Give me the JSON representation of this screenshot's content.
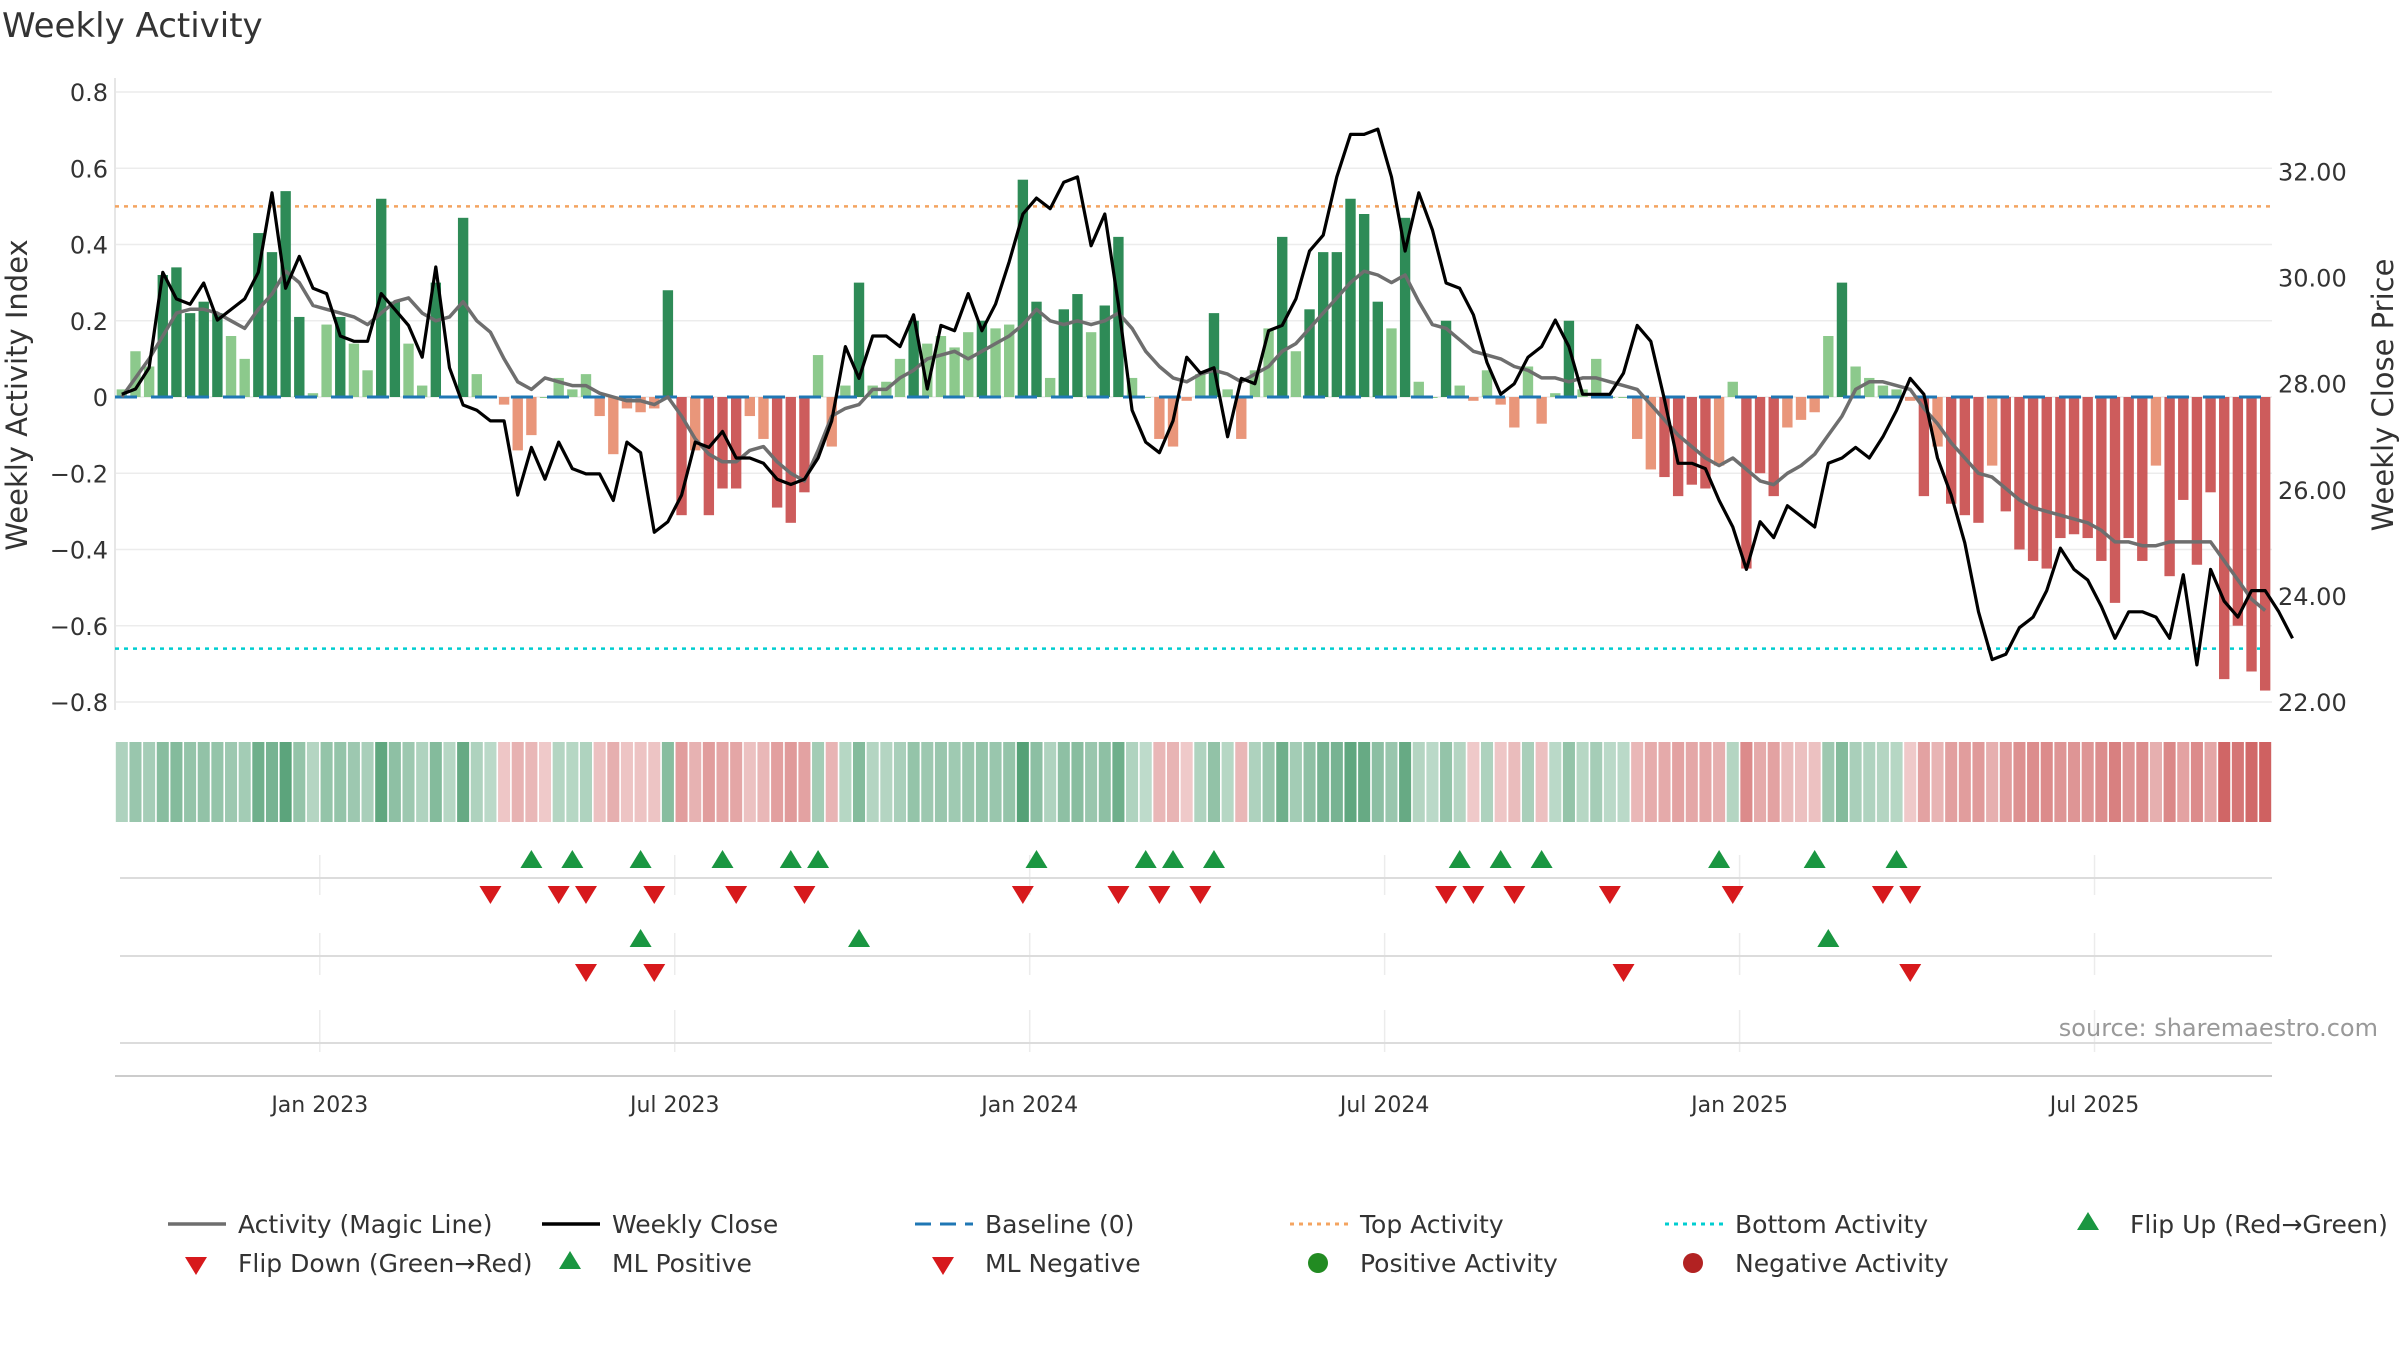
{
  "title": "Weekly Activity",
  "source": "source: sharemaestro.com",
  "colors": {
    "pos_strong": "#2e8b57",
    "pos_light": "#8cc98c",
    "neg_strong": "#cd5c5c",
    "neg_light": "#e9967a",
    "magic": "#6e6e6e",
    "close": "#000000",
    "baseline": "#1f77b4",
    "top": "#f4a460",
    "bottom": "#00ced1",
    "flip_up": "#1a9641",
    "flip_down": "#d7191c"
  },
  "chart_data": {
    "type": "bar",
    "title": "Weekly Activity",
    "ylabel_left": "Weekly Activity Index",
    "ylabel_right": "Weekly Close Price",
    "ylim_left": [
      -0.8,
      0.8
    ],
    "ylim_right": [
      22.0,
      33.5
    ],
    "left_ticks": [
      {
        "v": 0.8,
        "label": "0.8"
      },
      {
        "v": 0.6,
        "label": "0.6"
      },
      {
        "v": 0.4,
        "label": "0.4"
      },
      {
        "v": 0.2,
        "label": "0.2"
      },
      {
        "v": 0,
        "label": "0"
      },
      {
        "v": -0.2,
        "label": "−0.2"
      },
      {
        "v": -0.4,
        "label": "−0.4"
      },
      {
        "v": -0.6,
        "label": "−0.6"
      },
      {
        "v": -0.8,
        "label": "−0.8"
      }
    ],
    "right_ticks": [
      {
        "v": 32,
        "label": "32.00"
      },
      {
        "v": 30,
        "label": "30.00"
      },
      {
        "v": 28,
        "label": "28.00"
      },
      {
        "v": 26,
        "label": "26.00"
      },
      {
        "v": 24,
        "label": "24.00"
      },
      {
        "v": 22,
        "label": "22.00"
      }
    ],
    "x_ticks": [
      {
        "w": 15,
        "label": "Jan 2023"
      },
      {
        "w": 41,
        "label": "Jul 2023"
      },
      {
        "w": 67,
        "label": "Jan 2024"
      },
      {
        "w": 93,
        "label": "Jul 2024"
      },
      {
        "w": 119,
        "label": "Jan 2025"
      },
      {
        "w": 145,
        "label": "Jul 2025"
      }
    ],
    "top_activity": 0.5,
    "bottom_activity": -0.66,
    "weeks": 158,
    "activity": [
      0.02,
      0.12,
      0.08,
      0.32,
      0.34,
      0.22,
      0.25,
      0.22,
      0.16,
      0.1,
      0.43,
      0.38,
      0.54,
      0.21,
      0.01,
      0.19,
      0.21,
      0.14,
      0.07,
      0.52,
      0.25,
      0.14,
      0.03,
      0.3,
      0.0,
      0.47,
      0.06,
      0.0,
      -0.02,
      -0.14,
      -0.1,
      0.0,
      0.05,
      0.02,
      0.06,
      -0.05,
      -0.15,
      -0.03,
      -0.04,
      -0.03,
      0.28,
      -0.31,
      -0.14,
      -0.31,
      -0.24,
      -0.24,
      -0.05,
      -0.11,
      -0.29,
      -0.33,
      -0.25,
      0.11,
      -0.13,
      0.03,
      0.3,
      0.03,
      0.04,
      0.1,
      0.2,
      0.14,
      0.16,
      0.13,
      0.17,
      0.2,
      0.18,
      0.19,
      0.57,
      0.25,
      0.05,
      0.23,
      0.27,
      0.17,
      0.24,
      0.42,
      0.05,
      0.0,
      -0.11,
      -0.13,
      -0.01,
      0.06,
      0.22,
      0.02,
      -0.11,
      0.07,
      0.18,
      0.42,
      0.12,
      0.23,
      0.38,
      0.38,
      0.52,
      0.48,
      0.25,
      0.18,
      0.47,
      0.04,
      0.0,
      0.2,
      0.03,
      -0.01,
      0.07,
      -0.02,
      -0.08,
      0.08,
      -0.07,
      0.01,
      0.2,
      0.02,
      0.1,
      0.0,
      0.0,
      -0.11,
      -0.19,
      -0.21,
      -0.26,
      -0.23,
      -0.24,
      -0.18,
      0.04,
      -0.45,
      -0.2,
      -0.26,
      -0.08,
      -0.06,
      -0.04,
      0.16,
      0.3,
      0.08,
      0.05,
      0.03,
      0.02,
      -0.01,
      -0.26,
      -0.13,
      -0.28,
      -0.31,
      -0.33,
      -0.18,
      -0.3,
      -0.4,
      -0.43,
      -0.45,
      -0.37,
      -0.36,
      -0.37,
      -0.43,
      -0.54,
      -0.37,
      -0.43,
      -0.18,
      -0.47,
      -0.27,
      -0.44,
      -0.25,
      -0.74,
      -0.6,
      -0.72,
      -0.77
    ],
    "magic_line": [
      0.0,
      0.05,
      0.1,
      0.16,
      0.22,
      0.23,
      0.23,
      0.22,
      0.2,
      0.18,
      0.23,
      0.27,
      0.33,
      0.3,
      0.24,
      0.23,
      0.22,
      0.21,
      0.19,
      0.22,
      0.25,
      0.26,
      0.22,
      0.2,
      0.21,
      0.25,
      0.2,
      0.17,
      0.1,
      0.04,
      0.02,
      0.05,
      0.04,
      0.03,
      0.03,
      0.01,
      0.0,
      -0.01,
      -0.01,
      -0.02,
      0.0,
      -0.05,
      -0.11,
      -0.15,
      -0.17,
      -0.17,
      -0.14,
      -0.13,
      -0.17,
      -0.2,
      -0.22,
      -0.14,
      -0.05,
      -0.03,
      -0.02,
      0.02,
      0.02,
      0.05,
      0.07,
      0.1,
      0.11,
      0.12,
      0.1,
      0.12,
      0.14,
      0.16,
      0.19,
      0.23,
      0.2,
      0.19,
      0.2,
      0.19,
      0.2,
      0.22,
      0.18,
      0.12,
      0.08,
      0.05,
      0.04,
      0.06,
      0.07,
      0.06,
      0.04,
      0.06,
      0.08,
      0.12,
      0.14,
      0.18,
      0.22,
      0.26,
      0.3,
      0.33,
      0.32,
      0.3,
      0.32,
      0.25,
      0.19,
      0.18,
      0.15,
      0.12,
      0.11,
      0.1,
      0.08,
      0.07,
      0.05,
      0.05,
      0.04,
      0.05,
      0.05,
      0.04,
      0.03,
      0.02,
      -0.02,
      -0.06,
      -0.1,
      -0.13,
      -0.16,
      -0.18,
      -0.16,
      -0.19,
      -0.22,
      -0.23,
      -0.2,
      -0.18,
      -0.15,
      -0.1,
      -0.05,
      0.02,
      0.04,
      0.04,
      0.03,
      0.02,
      -0.03,
      -0.07,
      -0.12,
      -0.16,
      -0.2,
      -0.21,
      -0.24,
      -0.27,
      -0.29,
      -0.3,
      -0.31,
      -0.32,
      -0.33,
      -0.35,
      -0.38,
      -0.38,
      -0.39,
      -0.39,
      -0.38,
      -0.38,
      -0.38,
      -0.38,
      -0.43,
      -0.48,
      -0.53,
      -0.56
    ],
    "weekly_close": [
      27.8,
      27.9,
      28.3,
      30.1,
      29.6,
      29.5,
      29.9,
      29.2,
      29.4,
      29.6,
      30.1,
      31.6,
      29.8,
      30.4,
      29.8,
      29.7,
      28.9,
      28.8,
      28.8,
      29.7,
      29.4,
      29.1,
      28.5,
      30.2,
      28.3,
      27.6,
      27.5,
      27.3,
      27.3,
      25.9,
      26.8,
      26.2,
      26.9,
      26.4,
      26.3,
      26.3,
      25.8,
      26.9,
      26.7,
      25.2,
      25.4,
      25.9,
      26.9,
      26.8,
      27.1,
      26.6,
      26.6,
      26.5,
      26.2,
      26.1,
      26.2,
      26.6,
      27.3,
      28.7,
      28.1,
      28.9,
      28.9,
      28.7,
      29.3,
      27.9,
      29.1,
      29.0,
      29.7,
      29.0,
      29.5,
      30.3,
      31.2,
      31.5,
      31.3,
      31.8,
      31.9,
      30.6,
      31.2,
      29.5,
      27.5,
      26.9,
      26.7,
      27.3,
      28.5,
      28.2,
      28.3,
      27.0,
      28.1,
      28.0,
      29.0,
      29.1,
      29.6,
      30.5,
      30.8,
      31.9,
      32.7,
      32.7,
      32.8,
      31.9,
      30.5,
      31.6,
      30.9,
      29.9,
      29.8,
      29.3,
      28.4,
      27.8,
      28.0,
      28.5,
      28.7,
      29.2,
      28.7,
      27.8,
      27.8,
      27.8,
      28.2,
      29.1,
      28.8,
      27.7,
      26.5,
      26.5,
      26.4,
      25.8,
      25.3,
      24.5,
      25.4,
      25.1,
      25.7,
      25.5,
      25.3,
      26.5,
      26.6,
      26.8,
      26.6,
      27.0,
      27.5,
      28.1,
      27.8,
      26.6,
      25.9,
      25.0,
      23.7,
      22.8,
      22.9,
      23.4,
      23.6,
      24.1,
      24.9,
      24.5,
      24.3,
      23.8,
      23.2,
      23.7,
      23.7,
      23.6,
      23.2,
      24.4,
      22.7,
      24.5,
      23.9,
      23.6,
      24.1,
      24.1,
      23.7,
      23.2
    ],
    "heat_band": [
      0.18,
      0.3,
      0.22,
      0.4,
      0.42,
      0.32,
      0.34,
      0.32,
      0.28,
      0.24,
      0.55,
      0.5,
      0.66,
      0.32,
      0.14,
      0.32,
      0.33,
      0.28,
      0.2,
      0.64,
      0.36,
      0.28,
      0.16,
      0.42,
      0.12,
      0.6,
      0.18,
      0.1,
      -0.12,
      -0.28,
      -0.24,
      -0.1,
      0.14,
      0.12,
      0.16,
      -0.16,
      -0.3,
      -0.14,
      -0.15,
      -0.14,
      0.4,
      -0.44,
      -0.28,
      -0.44,
      -0.38,
      -0.38,
      -0.16,
      -0.24,
      -0.42,
      -0.46,
      -0.4,
      0.24,
      -0.26,
      0.12,
      0.42,
      0.14,
      0.14,
      0.2,
      0.32,
      0.28,
      0.3,
      0.26,
      0.3,
      0.32,
      0.3,
      0.32,
      0.7,
      0.38,
      0.16,
      0.36,
      0.4,
      0.3,
      0.36,
      0.55,
      0.16,
      0.08,
      -0.24,
      -0.26,
      -0.1,
      0.16,
      0.34,
      0.12,
      -0.24,
      0.18,
      0.3,
      0.55,
      0.24,
      0.36,
      0.5,
      0.5,
      0.64,
      0.6,
      0.38,
      0.3,
      0.6,
      0.14,
      0.1,
      0.32,
      0.14,
      -0.1,
      0.18,
      -0.12,
      -0.2,
      0.2,
      -0.18,
      0.1,
      0.32,
      0.12,
      0.22,
      0.1,
      0.1,
      -0.24,
      -0.32,
      -0.34,
      -0.4,
      -0.36,
      -0.38,
      -0.3,
      0.14,
      -0.58,
      -0.34,
      -0.4,
      -0.2,
      -0.18,
      -0.16,
      0.28,
      0.42,
      0.2,
      0.16,
      0.14,
      0.12,
      -0.1,
      -0.4,
      -0.26,
      -0.42,
      -0.44,
      -0.46,
      -0.3,
      -0.44,
      -0.54,
      -0.56,
      -0.58,
      -0.5,
      -0.5,
      -0.5,
      -0.56,
      -0.66,
      -0.5,
      -0.56,
      -0.3,
      -0.6,
      -0.4,
      -0.58,
      -0.38,
      -0.86,
      -0.74,
      -0.84,
      -0.9
    ],
    "flip_up_weeks": [
      30,
      33,
      38,
      44,
      49,
      51,
      67,
      75,
      77,
      80,
      98,
      101,
      104,
      117,
      124,
      130
    ],
    "flip_down_weeks": [
      27,
      32,
      34,
      39,
      45,
      50,
      66,
      73,
      76,
      79,
      97,
      99,
      102,
      109,
      118,
      129,
      131
    ],
    "ml_positive_weeks": [
      38,
      54,
      125
    ],
    "ml_negative_weeks": [
      34,
      39,
      110,
      131
    ],
    "legend": [
      "Activity (Magic Line)",
      "Weekly Close",
      "Baseline (0)",
      "Top Activity",
      "Bottom Activity",
      "Flip Up (Red→Green)",
      "Flip Down (Green→Red)",
      "ML Positive",
      "ML Negative",
      "Positive Activity",
      "Negative Activity"
    ]
  }
}
